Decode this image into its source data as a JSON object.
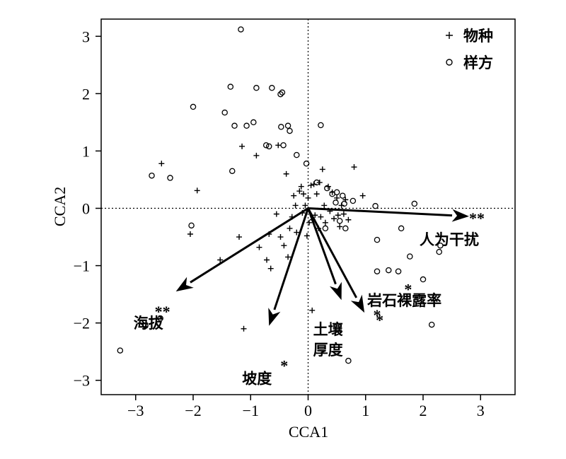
{
  "chart_data": {
    "type": "scatter",
    "title": "",
    "xlabel": "CCA1",
    "ylabel": "CCA2",
    "xlim": [
      -3.6,
      3.6
    ],
    "ylim": [
      -3.25,
      3.3
    ],
    "xticks": [
      "−3",
      "−2",
      "−1",
      "0",
      "1",
      "2",
      "3"
    ],
    "xtick_values": [
      -3,
      -2,
      -1,
      0,
      1,
      2,
      3
    ],
    "yticks": [
      "−3",
      "−2",
      "−1",
      "0",
      "1",
      "2",
      "3"
    ],
    "ytick_values": [
      -3,
      -2,
      -1,
      0,
      1,
      2,
      3
    ],
    "reference_lines": {
      "x": 0,
      "y": 0,
      "style": "dotted"
    },
    "legend": {
      "position": "top-right",
      "items": [
        {
          "symbol": "+",
          "label": "物种"
        },
        {
          "symbol": "○",
          "label": "样方"
        }
      ]
    },
    "series": [
      {
        "name": "物种",
        "marker": "+",
        "points": [
          [
            -2.55,
            0.78
          ],
          [
            -1.93,
            0.31
          ],
          [
            -1.53,
            -0.9
          ],
          [
            -1.2,
            -0.5
          ],
          [
            -1.15,
            1.08
          ],
          [
            -0.9,
            0.92
          ],
          [
            -0.85,
            -0.68
          ],
          [
            -0.72,
            -0.9
          ],
          [
            -0.68,
            -0.45
          ],
          [
            -0.65,
            -1.05
          ],
          [
            -0.55,
            -0.1
          ],
          [
            -0.52,
            1.1
          ],
          [
            -0.48,
            -0.5
          ],
          [
            -0.42,
            -0.65
          ],
          [
            -0.38,
            0.6
          ],
          [
            -0.35,
            -0.85
          ],
          [
            -0.32,
            -0.35
          ],
          [
            -0.28,
            -0.15
          ],
          [
            -0.25,
            0.22
          ],
          [
            -0.22,
            0.05
          ],
          [
            -0.2,
            -0.42
          ],
          [
            -0.15,
            0.3
          ],
          [
            -0.12,
            0.38
          ],
          [
            -0.1,
            -0.08
          ],
          [
            -0.08,
            0.25
          ],
          [
            -0.05,
            0.05
          ],
          [
            -0.02,
            -0.48
          ],
          [
            0.0,
            0.18
          ],
          [
            0.02,
            -0.25
          ],
          [
            0.05,
            0.4
          ],
          [
            0.08,
            -0.2
          ],
          [
            0.1,
            0.42
          ],
          [
            0.12,
            -0.12
          ],
          [
            0.15,
            0.25
          ],
          [
            0.18,
            -0.35
          ],
          [
            0.2,
            0.45
          ],
          [
            0.22,
            -0.15
          ],
          [
            0.25,
            0.68
          ],
          [
            0.28,
            0.05
          ],
          [
            0.3,
            -0.25
          ],
          [
            0.35,
            0.38
          ],
          [
            0.38,
            -0.05
          ],
          [
            0.42,
            0.28
          ],
          [
            0.45,
            -0.18
          ],
          [
            0.5,
            0.18
          ],
          [
            0.52,
            -0.12
          ],
          [
            0.55,
            -0.32
          ],
          [
            0.58,
            0.05
          ],
          [
            0.62,
            -0.1
          ],
          [
            0.65,
            0.15
          ],
          [
            0.7,
            -0.2
          ],
          [
            0.8,
            0.72
          ],
          [
            0.95,
            0.22
          ],
          [
            -2.05,
            -0.45
          ]
        ]
      },
      {
        "name": "样方",
        "marker": "circle",
        "points": [
          [
            -1.17,
            3.12
          ],
          [
            -1.35,
            2.12
          ],
          [
            -0.9,
            2.1
          ],
          [
            -0.63,
            2.1
          ],
          [
            -0.48,
            1.99
          ],
          [
            -0.45,
            2.02
          ],
          [
            -2.0,
            1.77
          ],
          [
            -1.45,
            1.67
          ],
          [
            -0.95,
            1.5
          ],
          [
            -1.28,
            1.44
          ],
          [
            -1.07,
            1.44
          ],
          [
            -0.47,
            1.42
          ],
          [
            -0.35,
            1.44
          ],
          [
            -0.32,
            1.35
          ],
          [
            0.22,
            1.45
          ],
          [
            -0.73,
            1.1
          ],
          [
            -0.68,
            1.08
          ],
          [
            -0.43,
            1.1
          ],
          [
            -0.2,
            0.93
          ],
          [
            -0.03,
            0.78
          ],
          [
            -1.32,
            0.65
          ],
          [
            -2.72,
            0.57
          ],
          [
            -2.4,
            0.53
          ],
          [
            0.15,
            0.45
          ],
          [
            0.33,
            0.35
          ],
          [
            0.42,
            0.25
          ],
          [
            0.5,
            0.28
          ],
          [
            0.48,
            0.1
          ],
          [
            0.6,
            0.22
          ],
          [
            0.63,
            0.08
          ],
          [
            0.78,
            0.13
          ],
          [
            1.17,
            0.04
          ],
          [
            1.85,
            0.08
          ],
          [
            0.55,
            -0.22
          ],
          [
            0.3,
            -0.35
          ],
          [
            0.65,
            -0.35
          ],
          [
            1.62,
            -0.35
          ],
          [
            1.2,
            -0.55
          ],
          [
            2.3,
            -0.65
          ],
          [
            2.28,
            -0.76
          ],
          [
            1.77,
            -0.84
          ],
          [
            1.4,
            -1.08
          ],
          [
            1.2,
            -1.1
          ],
          [
            1.57,
            -1.1
          ],
          [
            2.0,
            -1.24
          ],
          [
            -2.03,
            -0.3
          ],
          [
            -2.57,
            -1.92
          ],
          [
            -2.83,
            -2.05
          ],
          [
            -3.27,
            -2.48
          ],
          [
            0.7,
            -2.66
          ],
          [
            2.15,
            -2.03
          ]
        ]
      }
    ],
    "arrows": [
      {
        "label": "人为干扰",
        "significance": "**",
        "x": 2.8,
        "y": -0.14
      },
      {
        "label": "海拔",
        "significance": "**",
        "x": -2.3,
        "y": -1.45
      },
      {
        "label": "坡度",
        "significance": "*",
        "x": -0.68,
        "y": -2.05
      },
      {
        "label": "土壤",
        "label2": "厚度",
        "significance": "",
        "x": 0.58,
        "y": -1.6
      },
      {
        "label": "岩石裸露率",
        "significance": "*",
        "x": 0.98,
        "y": -1.82
      }
    ],
    "extra_marks": [
      {
        "text": "+",
        "x": -1.12,
        "y": -2.1
      },
      {
        "text": "+",
        "x": 0.07,
        "y": -1.78
      },
      {
        "text": "*",
        "x": 1.74,
        "y": -1.38
      },
      {
        "text": "*",
        "x": 1.2,
        "y": -1.83
      }
    ]
  }
}
